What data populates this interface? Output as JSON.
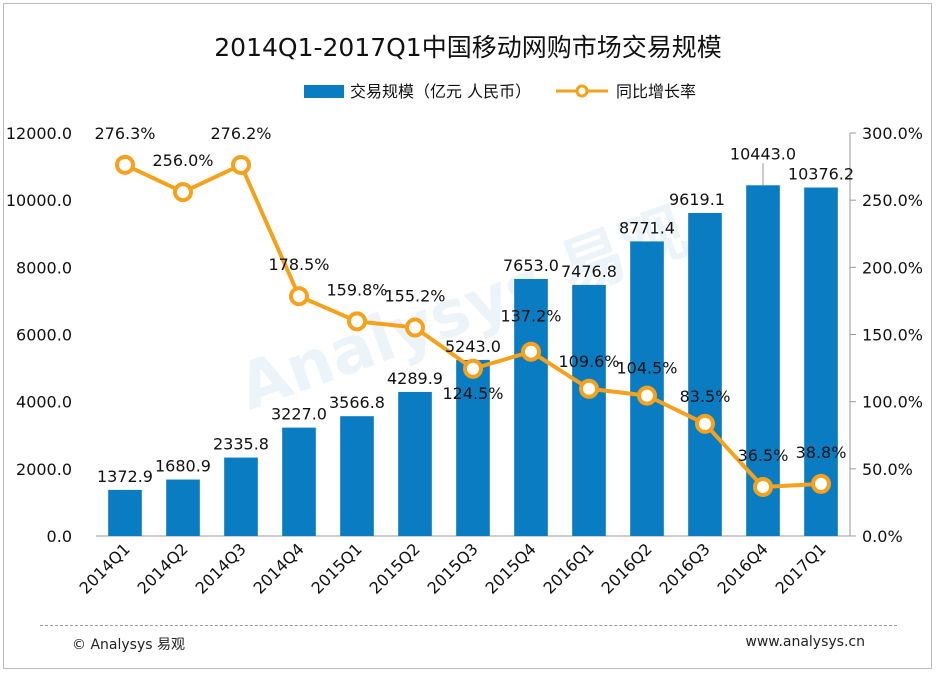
{
  "chart_data": {
    "type": "bar+line",
    "title": "2014Q1-2017Q1中国移动网购市场交易规模",
    "categories": [
      "2014Q1",
      "2014Q2",
      "2014Q3",
      "2014Q4",
      "2015Q1",
      "2015Q2",
      "2015Q3",
      "2015Q4",
      "2016Q1",
      "2016Q2",
      "2016Q3",
      "2016Q4",
      "2017Q1"
    ],
    "series": [
      {
        "name": "交易规模（亿元 人民币）",
        "type": "bar",
        "axis": "left",
        "values": [
          1372.9,
          1680.9,
          2335.8,
          3227.0,
          3566.8,
          4289.9,
          5243.0,
          7653.0,
          7476.8,
          8771.4,
          9619.1,
          10443.0,
          10376.2
        ],
        "labels": [
          "1372.9",
          "1680.9",
          "2335.8",
          "3227.0",
          "3566.8",
          "4289.9",
          "5243.0",
          "7653.0",
          "7476.8",
          "8771.4",
          "9619.1",
          "10443.0",
          "10376.2"
        ],
        "color": "#0a7cc2"
      },
      {
        "name": "同比增长率",
        "type": "line",
        "axis": "right",
        "values": [
          276.3,
          256.0,
          276.2,
          178.5,
          159.8,
          155.2,
          124.5,
          137.2,
          109.6,
          104.5,
          83.5,
          36.5,
          38.8
        ],
        "labels": [
          "276.3%",
          "256.0%",
          "276.2%",
          "178.5%",
          "159.8%",
          "155.2%",
          "124.5%",
          "137.2%",
          "109.6%",
          "104.5%",
          "83.5%",
          "36.5%",
          "38.8%"
        ],
        "color": "#f5a11b"
      }
    ],
    "yleft": {
      "min": 0,
      "max": 12000,
      "ticks": [
        "0.0",
        "2000.0",
        "4000.0",
        "6000.0",
        "8000.0",
        "10000.0",
        "12000.0"
      ]
    },
    "yright": {
      "min": 0,
      "max": 300,
      "ticks": [
        "0.0%",
        "50.0%",
        "100.0%",
        "150.0%",
        "200.0%",
        "250.0%",
        "300.0%"
      ]
    },
    "legend_position": "top"
  },
  "footer": {
    "copyright": "© Analysys 易观",
    "url": "www.analysys.cn"
  },
  "watermark": "Analysys 易观"
}
